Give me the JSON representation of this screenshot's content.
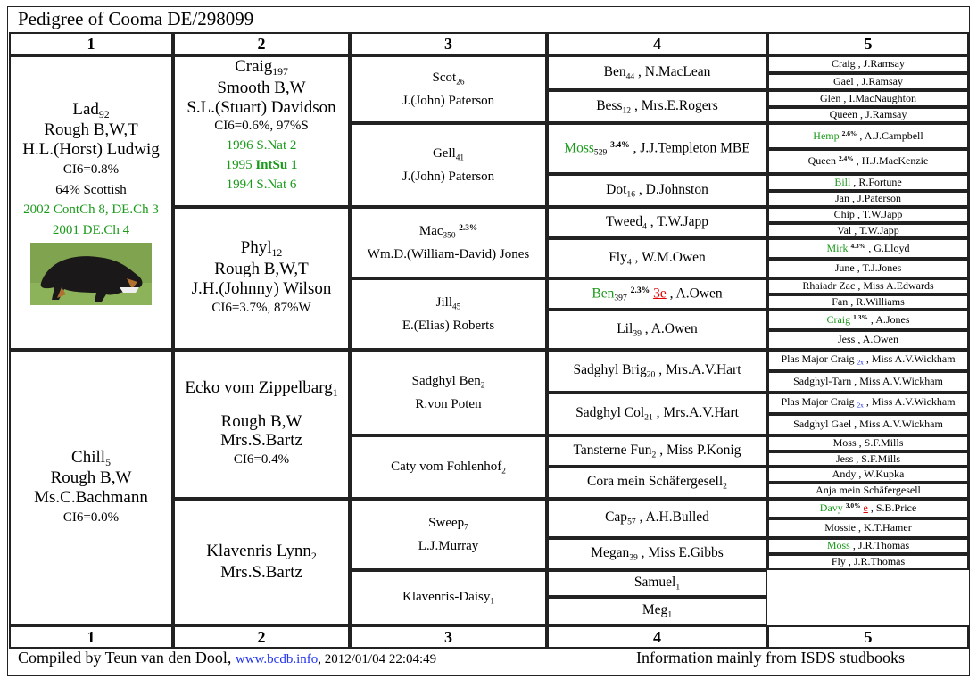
{
  "title": "Pedigree of   Cooma DE/298099",
  "columns": [
    "1",
    "2",
    "3",
    "4",
    "5"
  ],
  "colors": {
    "award": "#1a9a1a",
    "link": "#2233ee",
    "note": "#e00000"
  },
  "gen1": [
    {
      "name": "Lad",
      "reg": "92",
      "lines": [
        "Rough B,W,T",
        "H.L.(Horst) Ludwig"
      ],
      "small": [
        "CI6=0.8%",
        "64% Scottish"
      ],
      "awards": [
        "2002 ContCh 8, DE.Ch 3",
        "2001 DE.Ch 4"
      ],
      "photo": "dog-photo"
    },
    {
      "name": "Chill",
      "reg": "5",
      "lines": [
        "Rough B,W",
        "Ms.C.Bachmann"
      ],
      "small": [
        "CI6=0.0%"
      ],
      "awards": []
    }
  ],
  "gen2": [
    {
      "name": "Craig",
      "reg": "197",
      "lines": [
        "Smooth B,W",
        "S.L.(Stuart) Davidson"
      ],
      "small": [
        "CI6=0.6%, 97%S"
      ],
      "awards": [
        {
          "year": "1996",
          "text": "S.Nat 2",
          "bold": false
        },
        {
          "year": "1995",
          "text": "IntSu 1",
          "bold": true
        },
        {
          "year": "1994",
          "text": "S.Nat 6",
          "bold": false
        }
      ]
    },
    {
      "name": "Phyl",
      "reg": "12",
      "lines": [
        "Rough B,W,T",
        "J.H.(Johnny) Wilson"
      ],
      "small": [
        "CI6=3.7%, 87%W"
      ],
      "awards": []
    },
    {
      "name": "Ecko vom Zippelbarg",
      "reg": "1",
      "lines": [
        "",
        "Rough B,W",
        "Mrs.S.Bartz"
      ],
      "small": [
        "CI6=0.4%"
      ],
      "awards": []
    },
    {
      "name": "Klavenris Lynn",
      "reg": "2",
      "lines": [
        "Mrs.S.Bartz"
      ],
      "small": [],
      "awards": []
    }
  ],
  "gen3": [
    {
      "name": "Scot",
      "reg": "26",
      "owner": "J.(John) Paterson"
    },
    {
      "name": "Gell",
      "reg": "41",
      "owner": "J.(John) Paterson"
    },
    {
      "name": "Mac",
      "reg": "350",
      "pct": "2.3%",
      "owner": "Wm.D.(William-David) Jones"
    },
    {
      "name": "Jill",
      "reg": "45",
      "owner": "E.(Elias) Roberts"
    },
    {
      "name": "Sadghyl Ben",
      "reg": "2",
      "owner": "R.von Poten"
    },
    {
      "name": "Caty vom Fohlenhof",
      "reg": "2",
      "owner": ""
    },
    {
      "name": "Sweep",
      "reg": "7",
      "owner": "L.J.Murray"
    },
    {
      "name": "Klavenris-Daisy",
      "reg": "1",
      "owner": ""
    }
  ],
  "gen4": [
    {
      "name": "Ben",
      "reg": "44",
      "owner": "N.MacLean"
    },
    {
      "name": "Bess",
      "reg": "12",
      "owner": "Mrs.E.Rogers"
    },
    {
      "name": "Moss",
      "reg": "529",
      "pct": "3.4%",
      "owner": "J.J.Templeton MBE",
      "green": true
    },
    {
      "name": "Dot",
      "reg": "16",
      "owner": "D.Johnston"
    },
    {
      "name": "Tweed",
      "reg": "4",
      "owner": "T.W.Japp"
    },
    {
      "name": "Fly",
      "reg": "4",
      "owner": "W.M.Owen"
    },
    {
      "name": "Ben",
      "reg": "397",
      "pct": "2.3%",
      "note": "3e",
      "owner": "A.Owen",
      "green": true
    },
    {
      "name": "Lil",
      "reg": "39",
      "owner": "A.Owen"
    },
    {
      "name": "Sadghyl Brig",
      "reg": "20",
      "owner": "Mrs.A.V.Hart"
    },
    {
      "name": "Sadghyl Col",
      "reg": "21",
      "owner": "Mrs.A.V.Hart"
    },
    {
      "name": "Tansterne Fun",
      "reg": "2",
      "owner": "Miss P.Konig"
    },
    {
      "name": "Cora mein Schäfergesell",
      "reg": "2",
      "owner": ""
    },
    {
      "name": "Cap",
      "reg": "57",
      "owner": "A.H.Bulled"
    },
    {
      "name": "Megan",
      "reg": "39",
      "owner": "Miss E.Gibbs"
    },
    {
      "name": "Samuel",
      "reg": "1",
      "owner": ""
    },
    {
      "name": "Meg",
      "reg": "1",
      "owner": ""
    }
  ],
  "gen5": [
    {
      "name": "Craig",
      "owner": "J.Ramsay"
    },
    {
      "name": "Gael",
      "owner": "J.Ramsay"
    },
    {
      "name": "Glen",
      "owner": "I.MacNaughton"
    },
    {
      "name": "Queen",
      "owner": "J.Ramsay"
    },
    {
      "name": "Hemp",
      "pct": "2.6%",
      "owner": "A.J.Campbell",
      "green": true
    },
    {
      "name": "Queen",
      "pct": "2.4%",
      "owner": "H.J.MacKenzie"
    },
    {
      "name": "Bill",
      "owner": "R.Fortune",
      "green": true
    },
    {
      "name": "Jan",
      "owner": "J.Paterson"
    },
    {
      "name": "Chip",
      "owner": "T.W.Japp"
    },
    {
      "name": "Val",
      "owner": "T.W.Japp"
    },
    {
      "name": "Mirk",
      "pct": "4.3%",
      "owner": "G.Lloyd",
      "green": true
    },
    {
      "name": "June",
      "owner": "T.J.Jones"
    },
    {
      "name": "Rhaiadr Zac",
      "owner": "Miss A.Edwards"
    },
    {
      "name": "Fan",
      "owner": "R.Williams"
    },
    {
      "name": "Craig",
      "pct": "1.3%",
      "owner": "A.Jones",
      "green": true
    },
    {
      "name": "Jess",
      "owner": "A.Owen"
    },
    {
      "name": "Plas Major Craig",
      "link": "2x",
      "owner": "Miss A.V.Wickham"
    },
    {
      "name": "Sadghyl-Tarn",
      "owner": "Miss A.V.Wickham"
    },
    {
      "name": "Plas Major Craig",
      "link": "2x",
      "owner": "Miss A.V.Wickham"
    },
    {
      "name": "Sadghyl Gael",
      "owner": "Miss A.V.Wickham"
    },
    {
      "name": "Moss",
      "owner": "S.F.Mills"
    },
    {
      "name": "Jess",
      "owner": "S.F.Mills"
    },
    {
      "name": "Andy",
      "owner": "W.Kupka"
    },
    {
      "name": "Anja mein Schäfergesell",
      "owner": ""
    },
    {
      "name": "Davy",
      "pct": "3.0%",
      "note": "e",
      "owner": "S.B.Price",
      "green": true
    },
    {
      "name": "Mossie",
      "owner": "K.T.Hamer"
    },
    {
      "name": "Moss",
      "owner": "J.R.Thomas",
      "green": true
    },
    {
      "name": "Fly",
      "owner": "J.R.Thomas"
    }
  ],
  "footer": {
    "compiled": "Compiled by Teun van den Dool, ",
    "site": "www.bcdb.info",
    "date": ", 2012/01/04 22:04:49",
    "info": "Information mainly from ISDS studbooks"
  }
}
